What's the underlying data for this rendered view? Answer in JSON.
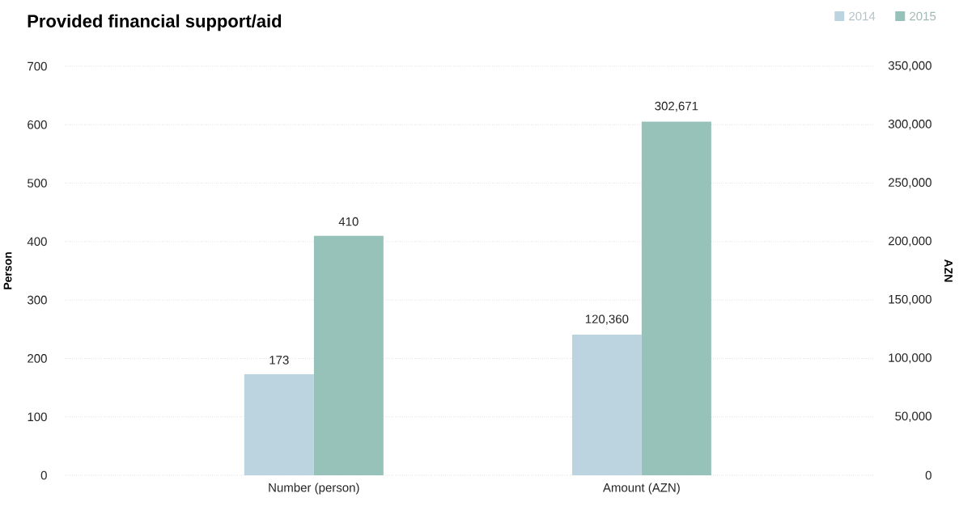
{
  "chart_data": {
    "type": "bar",
    "title": "Provided financial support/aid",
    "ylabel": "Person",
    "y2label": "AZN",
    "categories": [
      "Number (person)",
      "Amount (AZN)"
    ],
    "series": [
      {
        "name": "2014",
        "color": "#bcd4df",
        "values": [
          173,
          null
        ],
        "value_labels": [
          "173",
          null
        ]
      },
      {
        "name": "2015",
        "color": "#97c2ba",
        "values": [
          410,
          null
        ],
        "value_labels": [
          "410",
          null
        ]
      },
      {
        "color": "#bcd4df",
        "values": [
          null,
          120360
        ],
        "axis": "y2",
        "value_labels": [
          null,
          "120,360"
        ]
      },
      {
        "color": "#97c2ba",
        "values": [
          null,
          302671
        ],
        "axis": "y2",
        "value_labels": [
          null,
          "302,671"
        ]
      }
    ],
    "ylim": [
      0,
      700
    ],
    "yticks": [
      0,
      100,
      200,
      300,
      400,
      500,
      600,
      700
    ],
    "y2lim": [
      0,
      350000
    ],
    "y2ticks": [
      {
        "value": 0,
        "label": "0"
      },
      {
        "value": 50000,
        "label": "50,000"
      },
      {
        "value": 100000,
        "label": "100,000"
      },
      {
        "value": 150000,
        "label": "150,000"
      },
      {
        "value": 200000,
        "label": "200,000"
      },
      {
        "value": 250000,
        "label": "250,000"
      },
      {
        "value": 300000,
        "label": "300,000"
      },
      {
        "value": 350000,
        "label": "350,000"
      }
    ],
    "grid": "y",
    "legend": "top right"
  }
}
